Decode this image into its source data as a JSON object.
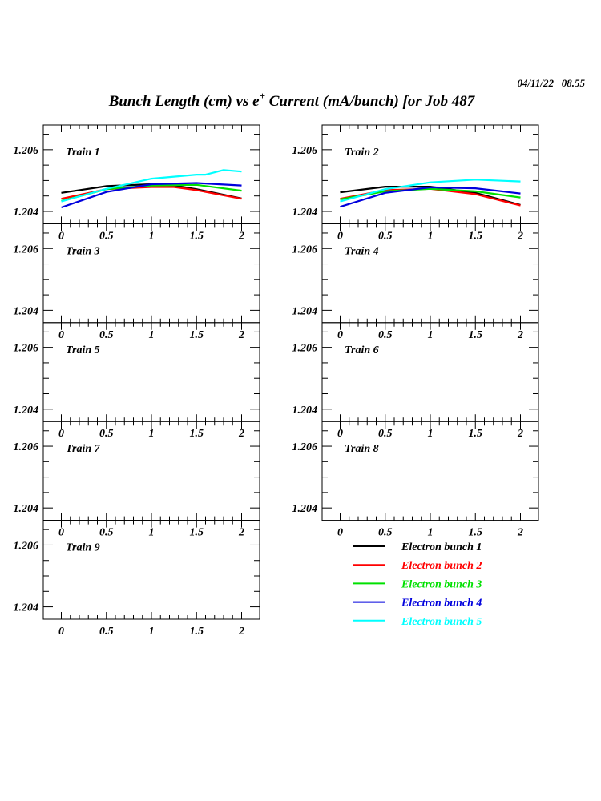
{
  "header": {
    "date": "04/11/22   08.55",
    "title_pre": "Bunch Length (cm) vs e",
    "title_sup": "+",
    "title_post": " Current (mA/bunch) for Job 487"
  },
  "chart_data": {
    "type": "line",
    "layout": "grid of 9 panels, 2 columns",
    "xlim": [
      -0.2,
      2.2
    ],
    "ylim": [
      1.2036,
      1.2068
    ],
    "x_ticks": [
      "0",
      "0.5",
      "1",
      "1.5",
      "2"
    ],
    "y_ticks": [
      "1.204",
      "1.206"
    ],
    "grid": false,
    "legend_placement": "bottom-right",
    "legend": [
      {
        "name": "Electron bunch 1",
        "color": "#000000"
      },
      {
        "name": "Electron bunch 2",
        "color": "#ff0000"
      },
      {
        "name": "Electron bunch 3",
        "color": "#00e000"
      },
      {
        "name": "Electron bunch 4",
        "color": "#0000dd"
      },
      {
        "name": "Electron bunch 5",
        "color": "#00ffff"
      }
    ],
    "panels": [
      {
        "label": "Train 1",
        "series": [
          {
            "name": "Electron bunch 1",
            "x": [
              0,
              0.5,
              1,
              1.25,
              1.5,
              2
            ],
            "y": [
              1.2046,
              1.20482,
              1.20488,
              1.20484,
              1.20472,
              1.20442
            ]
          },
          {
            "name": "Electron bunch 2",
            "x": [
              0,
              0.5,
              1,
              1.25,
              1.5,
              2
            ],
            "y": [
              1.20441,
              1.20472,
              1.20479,
              1.20479,
              1.20469,
              1.20441
            ]
          },
          {
            "name": "Electron bunch 3",
            "x": [
              0,
              0.5,
              1,
              1.5,
              2
            ],
            "y": [
              1.20434,
              1.20472,
              1.20484,
              1.20486,
              1.20467
            ]
          },
          {
            "name": "Electron bunch 4",
            "x": [
              0,
              0.5,
              1,
              1.5,
              2
            ],
            "y": [
              1.20413,
              1.20463,
              1.20488,
              1.20492,
              1.20484
            ]
          },
          {
            "name": "Electron bunch 5",
            "x": [
              0,
              0.5,
              1,
              1.5,
              1.6,
              1.8,
              2
            ],
            "y": [
              1.20432,
              1.20473,
              1.20506,
              1.20519,
              1.20519,
              1.20534,
              1.20529
            ]
          }
        ]
      },
      {
        "label": "Train 2",
        "series": [
          {
            "name": "Electron bunch 1",
            "x": [
              0,
              0.5,
              1,
              1.5,
              2
            ],
            "y": [
              1.20462,
              1.2048,
              1.2048,
              1.2046,
              1.20421
            ]
          },
          {
            "name": "Electron bunch 2",
            "x": [
              0,
              0.5,
              1,
              1.5,
              2
            ],
            "y": [
              1.20441,
              1.20469,
              1.20473,
              1.20456,
              1.20419
            ]
          },
          {
            "name": "Electron bunch 3",
            "x": [
              0,
              0.5,
              1,
              1.5,
              2
            ],
            "y": [
              1.20439,
              1.20465,
              1.20473,
              1.20465,
              1.20445
            ]
          },
          {
            "name": "Electron bunch 4",
            "x": [
              0,
              0.5,
              1,
              1.5,
              2
            ],
            "y": [
              1.20415,
              1.2046,
              1.20478,
              1.20475,
              1.20458
            ]
          },
          {
            "name": "Electron bunch 5",
            "x": [
              0,
              0.5,
              1,
              1.5,
              2
            ],
            "y": [
              1.20432,
              1.20472,
              1.20494,
              1.20503,
              1.20497
            ]
          }
        ]
      },
      {
        "label": "Train 3",
        "series": []
      },
      {
        "label": "Train 4",
        "series": []
      },
      {
        "label": "Train 5",
        "series": []
      },
      {
        "label": "Train 6",
        "series": []
      },
      {
        "label": "Train 7",
        "series": []
      },
      {
        "label": "Train 8",
        "series": []
      },
      {
        "label": "Train 9",
        "series": []
      }
    ]
  }
}
